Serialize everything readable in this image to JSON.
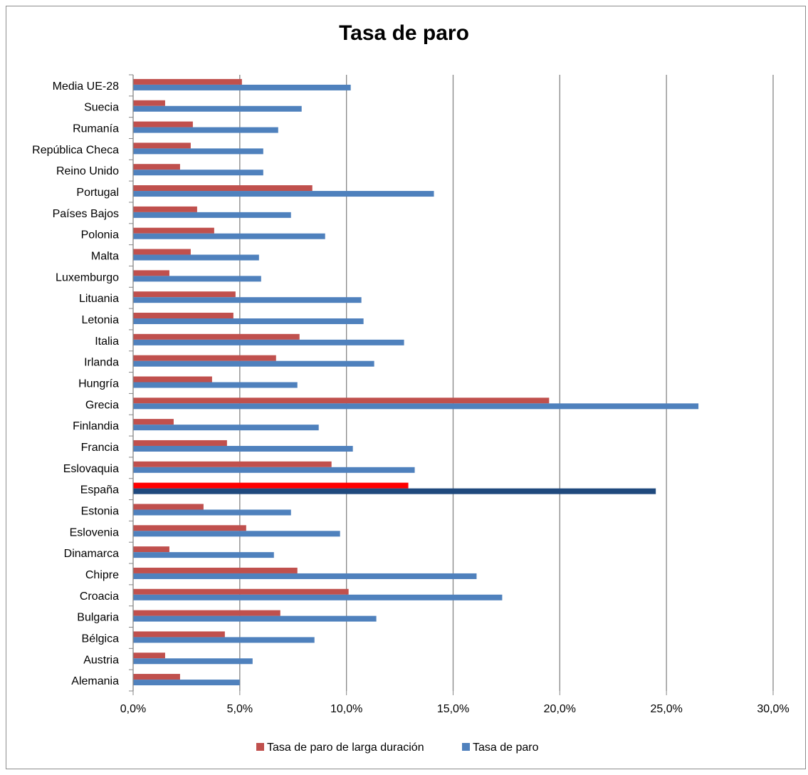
{
  "chart_data": {
    "type": "bar",
    "orientation": "horizontal",
    "title": "Tasa de paro",
    "categories": [
      "Alemania",
      "Austria",
      "Bélgica",
      "Bulgaria",
      "Croacia",
      "Chipre",
      "Dinamarca",
      "Eslovenia",
      "Estonia",
      "España",
      "Eslovaquia",
      "Francia",
      "Finlandia",
      "Grecia",
      "Hungría",
      "Irlanda",
      "Italia",
      "Letonia",
      "Lituania",
      "Luxemburgo",
      "Malta",
      "Polonia",
      "Países Bajos",
      "Portugal",
      "Reino Unido",
      "República Checa",
      "Rumanía",
      "Suecia",
      "Media UE-28"
    ],
    "series": [
      {
        "name": "Tasa de paro de larga duración",
        "color": "#c0504d",
        "values": [
          2.2,
          1.5,
          4.3,
          6.9,
          10.1,
          7.7,
          1.7,
          5.3,
          3.3,
          12.9,
          9.3,
          4.4,
          1.9,
          19.5,
          3.7,
          6.7,
          7.8,
          4.7,
          4.8,
          1.7,
          2.7,
          3.8,
          3.0,
          8.4,
          2.2,
          2.7,
          2.8,
          1.5,
          5.1
        ]
      },
      {
        "name": "Tasa de paro",
        "color": "#4f81bd",
        "values": [
          5.0,
          5.6,
          8.5,
          11.4,
          17.3,
          16.1,
          6.6,
          9.7,
          7.4,
          24.5,
          13.2,
          10.3,
          8.7,
          26.5,
          7.7,
          11.3,
          12.7,
          10.8,
          10.7,
          6.0,
          5.9,
          9.0,
          7.4,
          14.1,
          6.1,
          6.1,
          6.8,
          7.9,
          10.2
        ]
      }
    ],
    "highlight": {
      "category": "España",
      "colors": [
        "#ff0000",
        "#1f497d"
      ]
    },
    "xlim": [
      0,
      30
    ],
    "xticks": [
      "0,0%",
      "5,0%",
      "10,0%",
      "15,0%",
      "20,0%",
      "25,0%",
      "30,0%"
    ],
    "grid": true,
    "legend_position": "bottom"
  }
}
